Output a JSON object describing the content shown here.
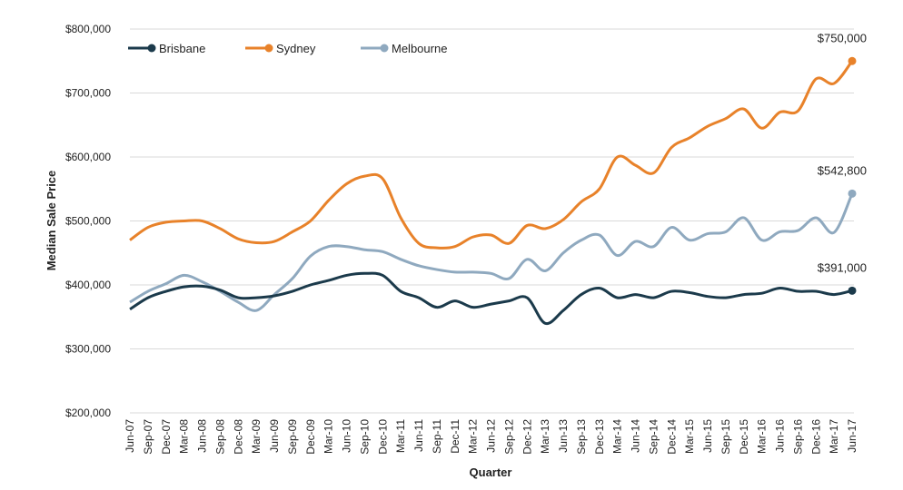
{
  "chart_data": {
    "type": "line",
    "title": "",
    "xlabel": "Quarter",
    "ylabel": "Median Sale Price",
    "ylim": [
      200000,
      800000
    ],
    "yticks": [
      200000,
      300000,
      400000,
      500000,
      600000,
      700000,
      800000
    ],
    "ytick_labels": [
      "$200,000",
      "$300,000",
      "$400,000",
      "$500,000",
      "$600,000",
      "$700,000",
      "$800,000"
    ],
    "grid": "horizontal",
    "legend_placement": "top-left",
    "categories": [
      "Jun-07",
      "Sep-07",
      "Dec-07",
      "Mar-08",
      "Jun-08",
      "Sep-08",
      "Dec-08",
      "Mar-09",
      "Jun-09",
      "Sep-09",
      "Dec-09",
      "Mar-10",
      "Jun-10",
      "Sep-10",
      "Dec-10",
      "Mar-11",
      "Jun-11",
      "Sep-11",
      "Dec-11",
      "Mar-12",
      "Jun-12",
      "Sep-12",
      "Dec-12",
      "Mar-13",
      "Jun-13",
      "Sep-13",
      "Dec-13",
      "Mar-14",
      "Jun-14",
      "Sep-14",
      "Dec-14",
      "Mar-15",
      "Jun-15",
      "Sep-15",
      "Dec-15",
      "Mar-16",
      "Jun-16",
      "Sep-16",
      "Dec-16",
      "Mar-17",
      "Jun-17"
    ],
    "series": [
      {
        "name": "Brisbane",
        "color": "#1b3a4b",
        "end_label": "$391,000",
        "values": [
          362000,
          380000,
          390000,
          397000,
          398000,
          392000,
          380000,
          380000,
          383000,
          390000,
          400000,
          407000,
          415000,
          418000,
          415000,
          390000,
          380000,
          365000,
          375000,
          365000,
          370000,
          375000,
          380000,
          340000,
          360000,
          385000,
          395000,
          380000,
          385000,
          380000,
          390000,
          388000,
          382000,
          380000,
          385000,
          387000,
          395000,
          390000,
          390000,
          385000,
          391000
        ]
      },
      {
        "name": "Sydney",
        "color": "#e8822a",
        "end_label": "$750,000",
        "values": [
          470000,
          490000,
          498000,
          500000,
          500000,
          488000,
          472000,
          466000,
          468000,
          483000,
          500000,
          532000,
          558000,
          570000,
          566000,
          505000,
          465000,
          458000,
          460000,
          475000,
          478000,
          465000,
          493000,
          488000,
          502000,
          530000,
          550000,
          600000,
          587000,
          575000,
          615000,
          630000,
          648000,
          660000,
          675000,
          645000,
          670000,
          672000,
          722000,
          715000,
          750000
        ]
      },
      {
        "name": "Melbourne",
        "color": "#8fa9bf",
        "end_label": "$542,800",
        "values": [
          373000,
          390000,
          402000,
          415000,
          405000,
          390000,
          373000,
          360000,
          385000,
          410000,
          445000,
          460000,
          460000,
          455000,
          452000,
          440000,
          430000,
          424000,
          420000,
          420000,
          418000,
          410000,
          440000,
          422000,
          450000,
          470000,
          478000,
          446000,
          468000,
          460000,
          490000,
          470000,
          480000,
          483000,
          505000,
          470000,
          483000,
          485000,
          505000,
          482000,
          542800
        ]
      }
    ]
  }
}
